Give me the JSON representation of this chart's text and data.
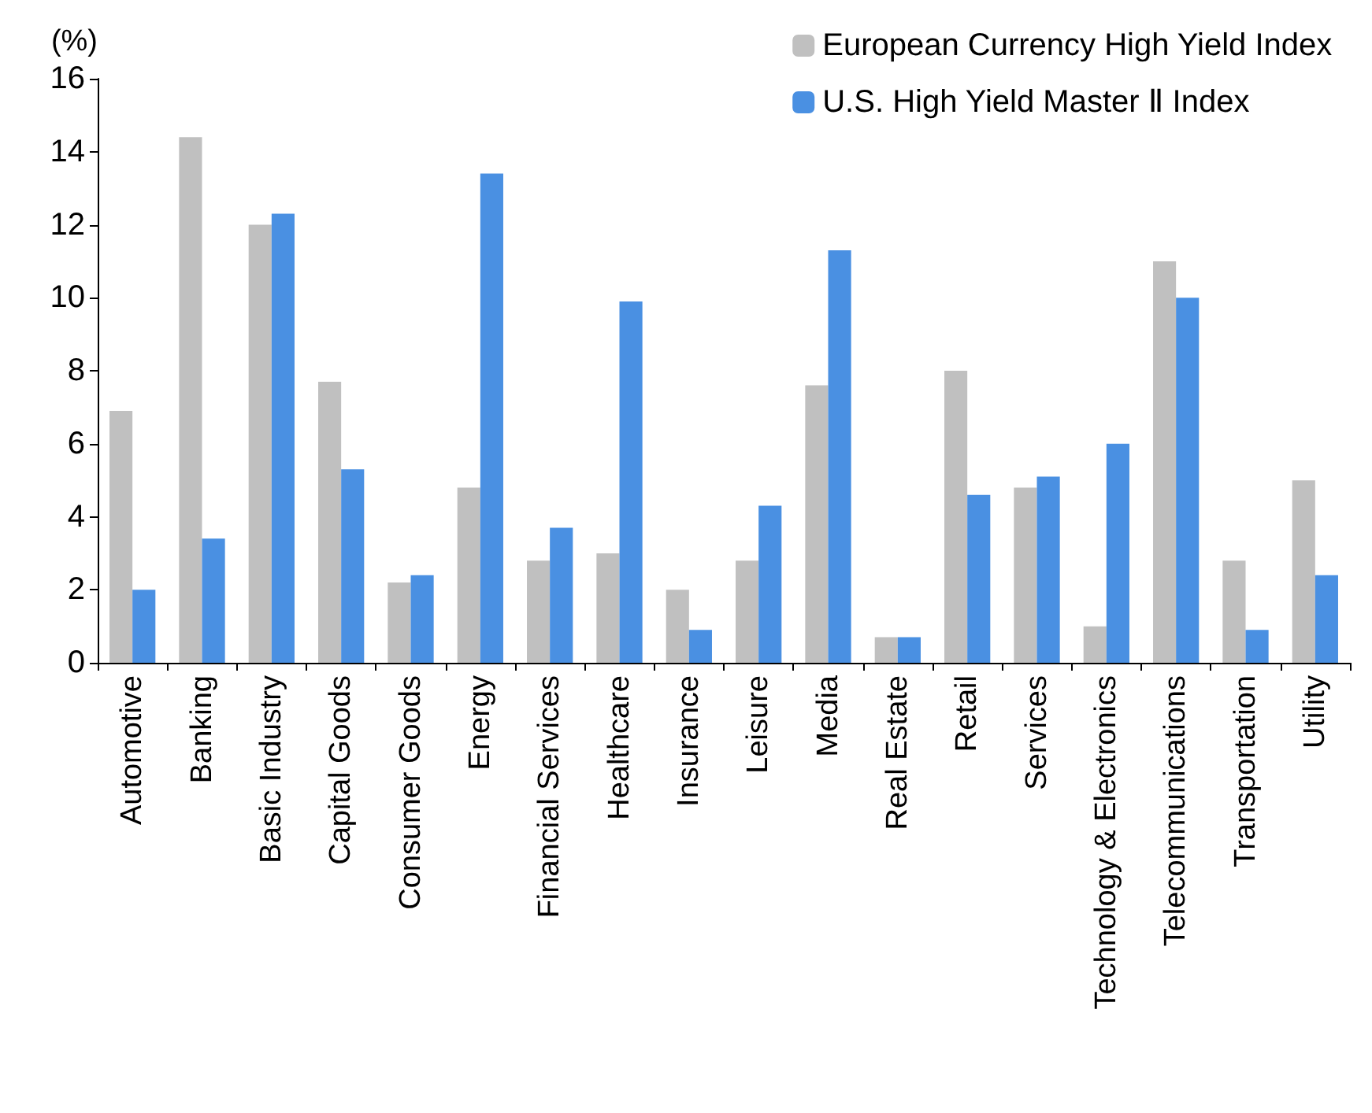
{
  "chart_data": {
    "type": "bar",
    "ylabel": "(%)",
    "categories": [
      "Automotive",
      "Banking",
      "Basic Industry",
      "Capital Goods",
      "Consumer Goods",
      "Energy",
      "Financial Services",
      "Healthcare",
      "Insurance",
      "Leisure",
      "Media",
      "Real Estate",
      "Retail",
      "Services",
      "Technology & Electronics",
      "Telecommunications",
      "Transportation",
      "Utility"
    ],
    "series": [
      {
        "name": "European Currency High Yield Index",
        "color": "#c0c0c0",
        "values": [
          6.9,
          14.4,
          12.0,
          7.7,
          2.2,
          4.8,
          2.8,
          3.0,
          2.0,
          2.8,
          7.6,
          0.7,
          8.0,
          4.8,
          1.0,
          11.0,
          2.8,
          5.0
        ]
      },
      {
        "name": "U.S. High Yield Master Ⅱ Index",
        "color": "#4a90e2",
        "values": [
          2.0,
          3.4,
          12.3,
          5.3,
          2.4,
          13.4,
          3.7,
          9.9,
          0.9,
          4.3,
          11.3,
          0.7,
          4.6,
          5.1,
          6.0,
          10.0,
          0.9,
          2.4
        ]
      }
    ],
    "ylim": [
      0,
      16
    ],
    "yticks": [
      0,
      2,
      4,
      6,
      8,
      10,
      12,
      14,
      16
    ],
    "grid": false,
    "legend": "top right"
  }
}
